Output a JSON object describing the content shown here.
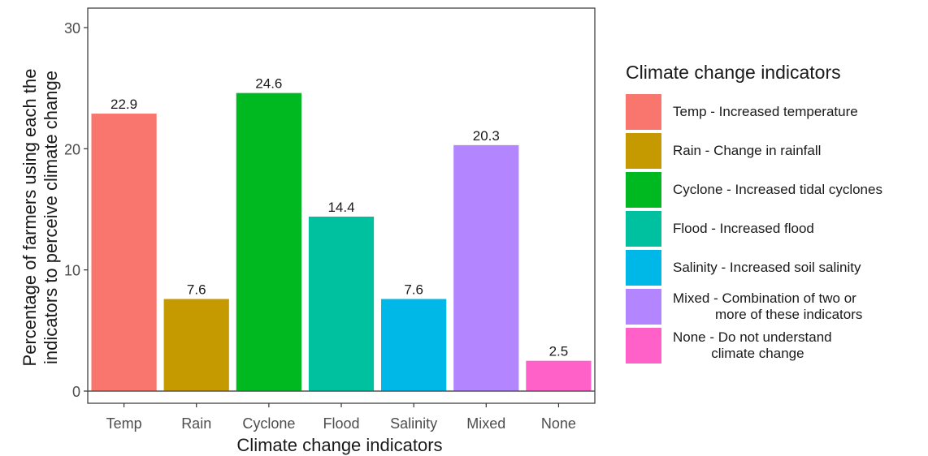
{
  "chart_data": {
    "type": "bar",
    "categories": [
      "Temp",
      "Rain",
      "Cyclone",
      "Flood",
      "Salinity",
      "Mixed",
      "None"
    ],
    "values": [
      22.9,
      7.6,
      24.6,
      14.4,
      7.6,
      20.3,
      2.5
    ],
    "data_labels": [
      "22.9",
      "7.6",
      "24.6",
      "14.4",
      "7.6",
      "20.3",
      "2.5"
    ],
    "colors": [
      "#F8766D",
      "#C49A00",
      "#00B81F",
      "#00C19F",
      "#00B8E7",
      "#B385FF",
      "#FF61C9"
    ],
    "xlabel": "Climate change indicators",
    "ylabel_lines": [
      "Percentage of farmers using each the",
      "indicators to perceive climate change"
    ],
    "ylim": [
      0,
      30
    ],
    "yticks": [
      0,
      10,
      20,
      30
    ],
    "ytick_labels": [
      "0",
      "10",
      "20",
      "30"
    ],
    "grid": false,
    "legend_position": "right",
    "legend_title": "Climate change indicators",
    "legend_entries": [
      "Temp - Increased temperature",
      "Rain - Change in rainfall",
      "Cyclone - Increased tidal cyclones",
      "Flood - Increased flood",
      "Salinity - Increased soil salinity",
      "Mixed - Combination of two or\n           more of these indicators",
      "None - Do not understand\n          climate change"
    ]
  }
}
